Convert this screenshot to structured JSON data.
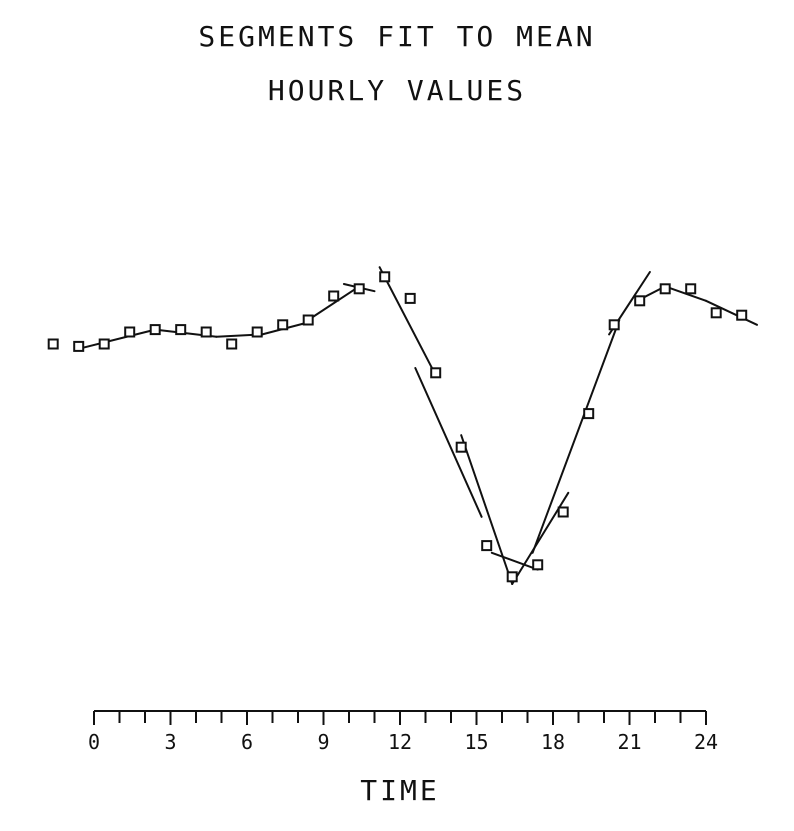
{
  "chart_data": {
    "type": "line",
    "title_lines": [
      "SEGMENTS FIT TO MEAN",
      "HOURLY VALUES"
    ],
    "xlabel": "TIME",
    "ylabel": "",
    "xlim": [
      0,
      24
    ],
    "x_ticks": [
      0,
      3,
      6,
      9,
      12,
      15,
      18,
      21,
      24
    ],
    "x_minor_step": 1,
    "y_axis_shown": false,
    "grid": false,
    "series": [
      {
        "marker": "square",
        "points": [
          [
            -1.6,
            10.0
          ],
          [
            -0.6,
            9.9
          ],
          [
            0.4,
            10.0
          ],
          [
            1.4,
            10.5
          ],
          [
            2.4,
            10.6
          ],
          [
            3.4,
            10.6
          ],
          [
            4.4,
            10.5
          ],
          [
            5.4,
            10.0
          ],
          [
            6.4,
            10.5
          ],
          [
            7.4,
            10.8
          ],
          [
            8.4,
            11.0
          ],
          [
            9.4,
            12.0
          ],
          [
            10.4,
            12.3
          ],
          [
            11.4,
            12.8
          ],
          [
            12.4,
            11.9
          ],
          [
            13.4,
            8.8
          ],
          [
            14.4,
            5.7
          ],
          [
            15.4,
            1.6
          ],
          [
            16.4,
            0.3
          ],
          [
            17.4,
            0.8
          ],
          [
            18.4,
            3.0
          ],
          [
            19.4,
            7.1
          ],
          [
            20.4,
            10.8
          ],
          [
            21.4,
            11.8
          ],
          [
            22.4,
            12.3
          ],
          [
            23.4,
            12.3
          ],
          [
            24.4,
            11.3
          ],
          [
            25.4,
            11.2
          ]
        ]
      },
      {
        "segments": [
          [
            [
              -0.6,
              9.8
            ],
            [
              2.4,
              10.6
            ]
          ],
          [
            [
              2.4,
              10.6
            ],
            [
              4.8,
              10.3
            ]
          ],
          [
            [
              4.8,
              10.3
            ],
            [
              6.6,
              10.4
            ]
          ],
          [
            [
              6.6,
              10.4
            ],
            [
              8.4,
              10.9
            ]
          ],
          [
            [
              8.4,
              11.0
            ],
            [
              10.4,
              12.4
            ]
          ],
          [
            [
              9.8,
              12.5
            ],
            [
              11.0,
              12.2
            ]
          ],
          [
            [
              11.2,
              13.2
            ],
            [
              13.4,
              8.7
            ]
          ],
          [
            [
              12.6,
              9.0
            ],
            [
              15.2,
              2.8
            ]
          ],
          [
            [
              14.4,
              6.2
            ],
            [
              16.4,
              0.0
            ]
          ],
          [
            [
              15.6,
              1.3
            ],
            [
              17.4,
              0.6
            ]
          ],
          [
            [
              16.4,
              0.0
            ],
            [
              18.6,
              3.8
            ]
          ],
          [
            [
              17.2,
              1.3
            ],
            [
              20.6,
              11.0
            ]
          ],
          [
            [
              20.2,
              10.4
            ],
            [
              21.8,
              13.0
            ]
          ],
          [
            [
              21.3,
              11.8
            ],
            [
              22.4,
              12.4
            ]
          ],
          [
            [
              22.4,
              12.4
            ],
            [
              24.0,
              11.8
            ]
          ],
          [
            [
              24.0,
              11.8
            ],
            [
              26.0,
              10.8
            ]
          ]
        ]
      }
    ]
  }
}
